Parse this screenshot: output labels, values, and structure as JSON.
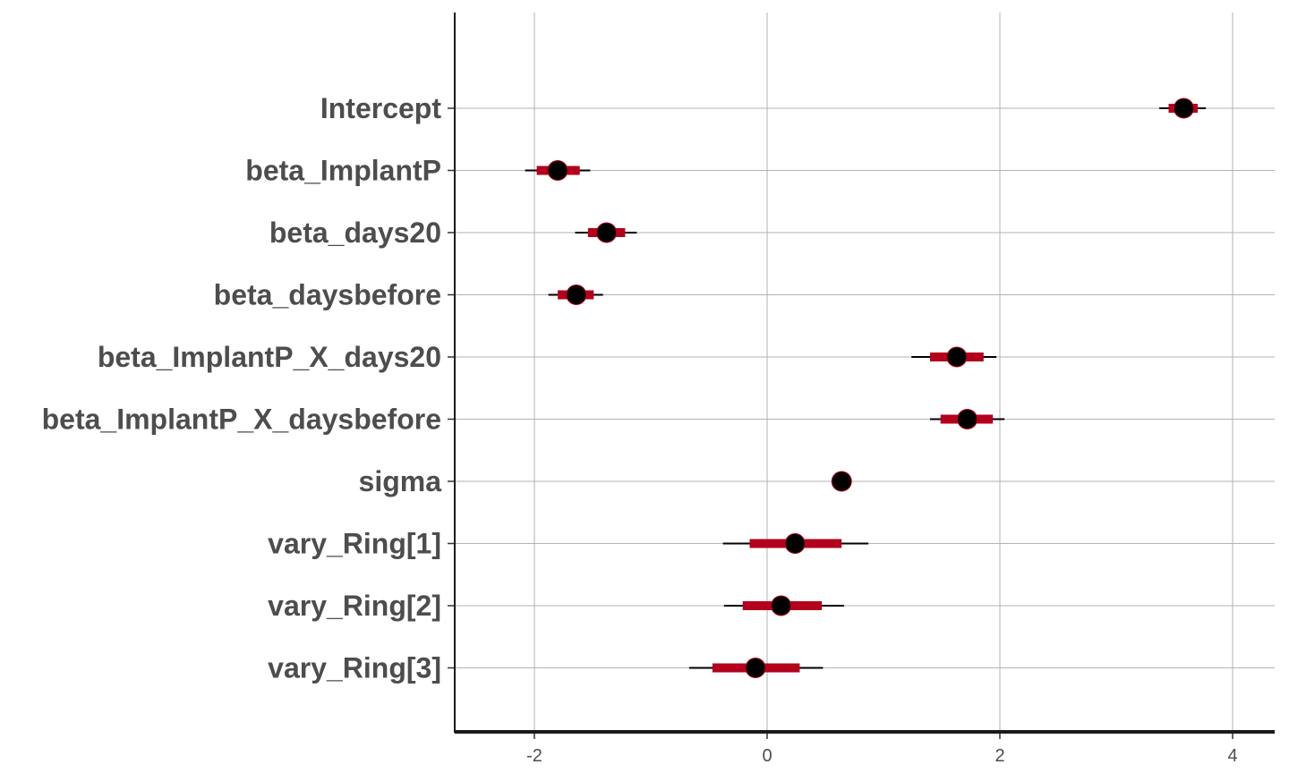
{
  "chart_data": {
    "type": "interval",
    "title": "",
    "xlabel": "",
    "ylabel": "",
    "xlim": [
      -2.7,
      4.35
    ],
    "xticks": [
      -2,
      0,
      2,
      4
    ],
    "xtick_labels": [
      "-2",
      "0",
      "2",
      "4"
    ],
    "grid": true,
    "colors": {
      "inner": "#b2001d",
      "outer": "#000000",
      "point": "#000000"
    },
    "parameters": [
      {
        "name": "Intercept",
        "median": 3.58,
        "inner": [
          3.45,
          3.7
        ],
        "outer": [
          3.37,
          3.77
        ]
      },
      {
        "name": "beta_ImplantP",
        "median": -1.8,
        "inner": [
          -1.98,
          -1.61
        ],
        "outer": [
          -2.08,
          -1.52
        ]
      },
      {
        "name": "beta_days20",
        "median": -1.38,
        "inner": [
          -1.54,
          -1.22
        ],
        "outer": [
          -1.65,
          -1.12
        ]
      },
      {
        "name": "beta_daysbefore",
        "median": -1.64,
        "inner": [
          -1.8,
          -1.49
        ],
        "outer": [
          -1.88,
          -1.41
        ]
      },
      {
        "name": "beta_ImplantP_X_days20",
        "median": 1.63,
        "inner": [
          1.4,
          1.86
        ],
        "outer": [
          1.24,
          1.97
        ]
      },
      {
        "name": "beta_ImplantP_X_daysbefore",
        "median": 1.72,
        "inner": [
          1.49,
          1.94
        ],
        "outer": [
          1.4,
          2.04
        ]
      },
      {
        "name": "sigma",
        "median": 0.64,
        "inner": [
          0.61,
          0.67
        ],
        "outer": [
          0.59,
          0.69
        ]
      },
      {
        "name": "vary_Ring[1]",
        "median": 0.24,
        "inner": [
          -0.15,
          0.64
        ],
        "outer": [
          -0.38,
          0.87
        ]
      },
      {
        "name": "vary_Ring[2]",
        "median": 0.12,
        "inner": [
          -0.21,
          0.47
        ],
        "outer": [
          -0.37,
          0.66
        ]
      },
      {
        "name": "vary_Ring[3]",
        "median": -0.1,
        "inner": [
          -0.47,
          0.28
        ],
        "outer": [
          -0.67,
          0.48
        ]
      }
    ]
  }
}
